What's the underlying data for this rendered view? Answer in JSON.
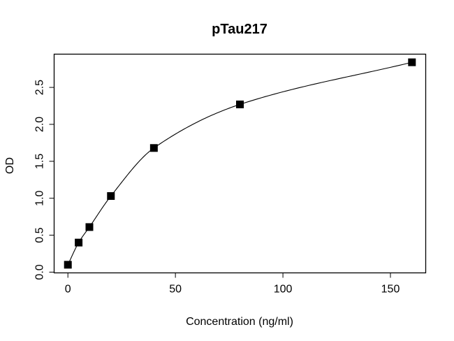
{
  "chart_data": {
    "type": "scatter",
    "title": "pTau217",
    "xlabel": "Concentration (ng/ml)",
    "ylabel": "OD",
    "xlim": [
      -6.4,
      166.4
    ],
    "ylim": [
      -0.01,
      2.95
    ],
    "xticks": [
      0,
      50,
      100,
      150
    ],
    "xtick_labels": [
      "0",
      "50",
      "100",
      "150"
    ],
    "yticks": [
      0.0,
      0.5,
      1.0,
      1.5,
      2.0,
      2.5
    ],
    "ytick_labels": [
      "0.0",
      "0.5",
      "1.0",
      "1.5",
      "2.0",
      "2.5"
    ],
    "grid": false,
    "marker": "filled-square",
    "fit_line": true,
    "series": [
      {
        "name": "standards",
        "x": [
          0,
          5,
          10,
          20,
          40,
          80,
          160
        ],
        "y": [
          0.1,
          0.4,
          0.61,
          1.03,
          1.68,
          2.27,
          2.84
        ]
      }
    ],
    "color": "#000000"
  }
}
